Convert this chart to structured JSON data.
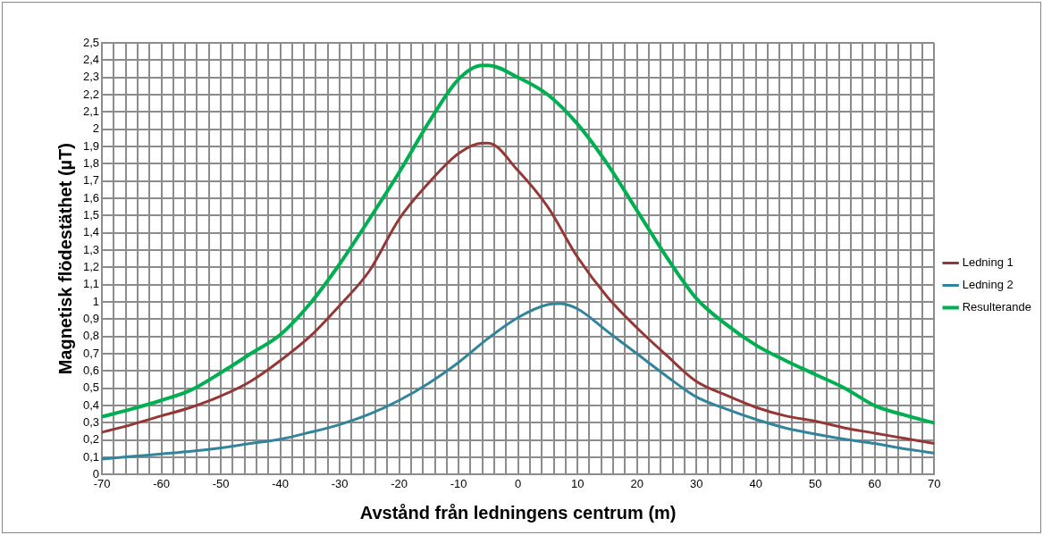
{
  "chart_data": {
    "type": "line",
    "xlabel": "Avstånd från ledningens centrum (m)",
    "ylabel": "Magnetisk flödestäthet (µT)",
    "series": [
      {
        "name": "Ledning 1",
        "color": "#953735",
        "x": [
          -70,
          -65,
          -60,
          -55,
          -50,
          -45,
          -40,
          -35,
          -30,
          -25,
          -20,
          -15,
          -10,
          -6,
          -5,
          0,
          5,
          10,
          15,
          20,
          25,
          30,
          35,
          40,
          45,
          50,
          55,
          60,
          65,
          70
        ],
        "values": [
          0.245,
          0.29,
          0.34,
          0.39,
          0.455,
          0.54,
          0.66,
          0.8,
          0.98,
          1.18,
          1.48,
          1.69,
          1.86,
          1.92,
          1.92,
          1.76,
          1.55,
          1.26,
          1.03,
          0.85,
          0.69,
          0.54,
          0.46,
          0.39,
          0.34,
          0.31,
          0.27,
          0.24,
          0.21,
          0.18
        ]
      },
      {
        "name": "Ledning 2",
        "color": "#31849b",
        "x": [
          -70,
          -65,
          -60,
          -55,
          -50,
          -45,
          -40,
          -35,
          -30,
          -25,
          -20,
          -15,
          -10,
          -5,
          0,
          5,
          7,
          10,
          15,
          20,
          25,
          30,
          35,
          40,
          45,
          50,
          55,
          60,
          65,
          70
        ],
        "values": [
          0.09,
          0.105,
          0.12,
          0.135,
          0.155,
          0.18,
          0.205,
          0.245,
          0.29,
          0.35,
          0.43,
          0.53,
          0.65,
          0.79,
          0.91,
          0.985,
          0.99,
          0.96,
          0.83,
          0.7,
          0.57,
          0.45,
          0.38,
          0.32,
          0.27,
          0.235,
          0.205,
          0.18,
          0.15,
          0.125
        ]
      },
      {
        "name": "Resulterande",
        "color": "#00b050",
        "x": [
          -70,
          -65,
          -60,
          -55,
          -50,
          -45,
          -40,
          -35,
          -30,
          -25,
          -20,
          -15,
          -10,
          -6,
          -5,
          0,
          5,
          10,
          15,
          20,
          25,
          30,
          35,
          40,
          45,
          50,
          55,
          60,
          65,
          70
        ],
        "values": [
          0.335,
          0.38,
          0.43,
          0.49,
          0.59,
          0.7,
          0.81,
          0.99,
          1.22,
          1.48,
          1.75,
          2.04,
          2.29,
          2.37,
          2.37,
          2.3,
          2.2,
          2.03,
          1.8,
          1.53,
          1.26,
          1.02,
          0.87,
          0.75,
          0.66,
          0.58,
          0.5,
          0.4,
          0.345,
          0.3
        ]
      }
    ],
    "xlim": [
      -70,
      70
    ],
    "xticks": [
      -70,
      {
        "value": -68,
        "label": null
      },
      {
        "value": -66,
        "label": null
      },
      {
        "value": -64,
        "label": null
      },
      {
        "value": -62,
        "label": null
      },
      -60,
      {
        "value": -58,
        "label": null
      },
      {
        "value": -56,
        "label": null
      },
      {
        "value": -54,
        "label": null
      },
      {
        "value": -52,
        "label": null
      },
      -50,
      {
        "value": -48,
        "label": null
      },
      {
        "value": -46,
        "label": null
      },
      {
        "value": -44,
        "label": null
      },
      {
        "value": -42,
        "label": null
      },
      -40,
      {
        "value": -38,
        "label": null
      },
      {
        "value": -36,
        "label": null
      },
      {
        "value": -34,
        "label": null
      },
      {
        "value": -32,
        "label": null
      },
      -30,
      {
        "value": -28,
        "label": null
      },
      {
        "value": -26,
        "label": null
      },
      {
        "value": -24,
        "label": null
      },
      {
        "value": -22,
        "label": null
      },
      -20,
      {
        "value": -18,
        "label": null
      },
      {
        "value": -16,
        "label": null
      },
      {
        "value": -14,
        "label": null
      },
      {
        "value": -12,
        "label": null
      },
      -10,
      {
        "value": -8,
        "label": null
      },
      {
        "value": -6,
        "label": null
      },
      {
        "value": -4,
        "label": null
      },
      {
        "value": -2,
        "label": null
      },
      0,
      {
        "value": 2,
        "label": null
      },
      {
        "value": 4,
        "label": null
      },
      {
        "value": 6,
        "label": null
      },
      {
        "value": 8,
        "label": null
      },
      10,
      {
        "value": 12,
        "label": null
      },
      {
        "value": 14,
        "label": null
      },
      {
        "value": 16,
        "label": null
      },
      {
        "value": 18,
        "label": null
      },
      20,
      {
        "value": 22,
        "label": null
      },
      {
        "value": 24,
        "label": null
      },
      {
        "value": 26,
        "label": null
      },
      {
        "value": 28,
        "label": null
      },
      30,
      {
        "value": 32,
        "label": null
      },
      {
        "value": 34,
        "label": null
      },
      {
        "value": 36,
        "label": null
      },
      {
        "value": 38,
        "label": null
      },
      40,
      {
        "value": 42,
        "label": null
      },
      {
        "value": 44,
        "label": null
      },
      {
        "value": 46,
        "label": null
      },
      {
        "value": 48,
        "label": null
      },
      50,
      {
        "value": 52,
        "label": null
      },
      {
        "value": 54,
        "label": null
      },
      {
        "value": 56,
        "label": null
      },
      {
        "value": 58,
        "label": null
      },
      60,
      {
        "value": 62,
        "label": null
      },
      {
        "value": 64,
        "label": null
      },
      {
        "value": 66,
        "label": null
      },
      {
        "value": 68,
        "label": null
      },
      70
    ],
    "ylim": [
      0,
      2.5
    ],
    "yticks": [
      0,
      {
        "value": 0.1,
        "label": "0,1"
      },
      {
        "value": 0.2,
        "label": "0,2"
      },
      {
        "value": 0.3,
        "label": "0,3"
      },
      {
        "value": 0.4,
        "label": "0,4"
      },
      {
        "value": 0.5,
        "label": "0,5"
      },
      {
        "value": 0.6,
        "label": "0,6"
      },
      {
        "value": 0.7,
        "label": "0,7"
      },
      {
        "value": 0.8,
        "label": "0,8"
      },
      {
        "value": 0.9,
        "label": "0,9"
      },
      1,
      {
        "value": 1.1,
        "label": "1,1"
      },
      {
        "value": 1.2,
        "label": "1,2"
      },
      {
        "value": 1.3,
        "label": "1,3"
      },
      {
        "value": 1.4,
        "label": "1,4"
      },
      {
        "value": 1.5,
        "label": "1,5"
      },
      {
        "value": 1.6,
        "label": "1,6"
      },
      {
        "value": 1.7,
        "label": "1,7"
      },
      {
        "value": 1.8,
        "label": "1,8"
      },
      {
        "value": 1.9,
        "label": "1,9"
      },
      2,
      {
        "value": 2.1,
        "label": "2,1"
      },
      {
        "value": 2.2,
        "label": "2,2"
      },
      {
        "value": 2.3,
        "label": "2,3"
      },
      {
        "value": 2.4,
        "label": "2,4"
      },
      {
        "value": 2.5,
        "label": "2,5"
      }
    ],
    "grid": true,
    "legend": "right",
    "marker": "none",
    "line_style": "solid"
  }
}
